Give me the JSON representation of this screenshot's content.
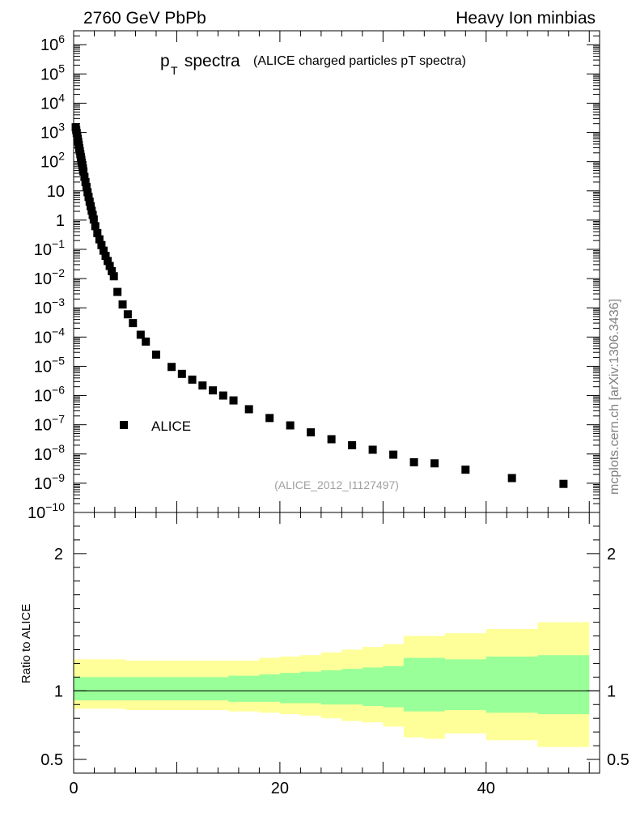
{
  "header": {
    "left": "2760 GeV PbPb",
    "right": "Heavy Ion minbias"
  },
  "title": {
    "main": "p",
    "sub": "T",
    "rest": " spectra",
    "paren": "(ALICE charged particles pT spectra)"
  },
  "watermark": "mcplots.cern.ch [arXiv:1306.3436]",
  "analysis_id": "(ALICE_2012_I1127497)",
  "legend": {
    "label": "ALICE"
  },
  "ratio_ylabel": "Ratio to ALICE",
  "colors": {
    "marker": "#000000",
    "band_outer": "#ffff99",
    "band_inner": "#99ff99",
    "watermark": "#808080",
    "analysis_id": "#a0a0a0"
  },
  "chart_data": [
    {
      "type": "scatter",
      "name": "main",
      "yscale": "log",
      "xlim": [
        0,
        51
      ],
      "ylim": [
        1e-10,
        3000000.0
      ],
      "ytick_labels": [
        {
          "base": "10",
          "exp": "6"
        },
        {
          "base": "10",
          "exp": "5"
        },
        {
          "base": "10",
          "exp": "4"
        },
        {
          "base": "10",
          "exp": "3"
        },
        {
          "base": "10",
          "exp": "2"
        },
        {
          "base": "10",
          "exp": ""
        },
        {
          "base": "1",
          "exp": ""
        },
        {
          "base": "10",
          "exp": "−1"
        },
        {
          "base": "10",
          "exp": "−2"
        },
        {
          "base": "10",
          "exp": "−3"
        },
        {
          "base": "10",
          "exp": "−4"
        },
        {
          "base": "10",
          "exp": "−5"
        },
        {
          "base": "10",
          "exp": "−6"
        },
        {
          "base": "10",
          "exp": "−7"
        },
        {
          "base": "10",
          "exp": "−8"
        },
        {
          "base": "10",
          "exp": "−9"
        },
        {
          "base": "10",
          "exp": "−10"
        }
      ],
      "series": [
        {
          "name": "ALICE",
          "x": [
            0.2,
            0.25,
            0.3,
            0.35,
            0.4,
            0.45,
            0.5,
            0.55,
            0.6,
            0.65,
            0.7,
            0.75,
            0.8,
            0.85,
            0.9,
            0.95,
            1.05,
            1.15,
            1.25,
            1.35,
            1.45,
            1.55,
            1.65,
            1.75,
            1.85,
            1.95,
            2.1,
            2.3,
            2.5,
            2.7,
            2.9,
            3.1,
            3.3,
            3.5,
            3.7,
            3.9,
            4.25,
            4.75,
            5.25,
            5.75,
            6.5,
            7.0,
            8.0,
            9.5,
            10.5,
            11.5,
            12.5,
            13.5,
            14.5,
            15.5,
            17.0,
            19.0,
            21.0,
            23.0,
            25.0,
            27.0,
            29.0,
            31.0,
            33.0,
            35.0,
            38.0,
            42.5,
            47.5
          ],
          "y": [
            1500,
            1200,
            950,
            750,
            600,
            470,
            370,
            290,
            230,
            180,
            145,
            115,
            92,
            73,
            58,
            46,
            30,
            20,
            13.5,
            9,
            6.2,
            4.3,
            3.0,
            2.1,
            1.5,
            1.05,
            0.62,
            0.36,
            0.22,
            0.14,
            0.09,
            0.06,
            0.04,
            0.027,
            0.018,
            0.012,
            0.0035,
            0.0013,
            0.0006,
            0.0003,
            0.00012,
            7e-05,
            2.5e-05,
            9.5e-06,
            5.5e-06,
            3.5e-06,
            2.2e-06,
            1.5e-06,
            1e-06,
            6.8e-07,
            3.4e-07,
            1.7e-07,
            9.5e-08,
            5.5e-08,
            3.2e-08,
            2e-08,
            1.4e-08,
            9.5e-09,
            5.2e-09,
            4.8e-09,
            2.9e-09,
            1.5e-09,
            9.5e-10
          ]
        }
      ]
    },
    {
      "type": "area",
      "name": "ratio",
      "xlim": [
        0,
        51
      ],
      "ylim": [
        0.4,
        2.3
      ],
      "ytick_labels": [
        "2",
        "1",
        "0.5"
      ],
      "xtick_labels": [
        "0",
        "20",
        "40"
      ],
      "reference_line": 1.0,
      "bins": [
        0,
        5,
        10,
        15,
        18,
        20,
        22,
        24,
        26,
        28,
        30,
        32,
        34,
        36,
        40,
        45,
        50
      ],
      "band_outer_hi": [
        1.23,
        1.22,
        1.22,
        1.22,
        1.24,
        1.25,
        1.26,
        1.28,
        1.3,
        1.32,
        1.34,
        1.4,
        1.4,
        1.42,
        1.45,
        1.5
      ],
      "band_outer_lo": [
        0.87,
        0.86,
        0.86,
        0.85,
        0.84,
        0.83,
        0.82,
        0.8,
        0.78,
        0.77,
        0.74,
        0.66,
        0.65,
        0.69,
        0.64,
        0.59
      ],
      "band_inner_hi": [
        1.1,
        1.1,
        1.1,
        1.11,
        1.12,
        1.13,
        1.14,
        1.15,
        1.16,
        1.17,
        1.18,
        1.24,
        1.24,
        1.23,
        1.25,
        1.26
      ],
      "band_inner_lo": [
        0.93,
        0.93,
        0.93,
        0.92,
        0.92,
        0.91,
        0.91,
        0.9,
        0.9,
        0.89,
        0.88,
        0.85,
        0.85,
        0.86,
        0.84,
        0.83
      ]
    }
  ]
}
